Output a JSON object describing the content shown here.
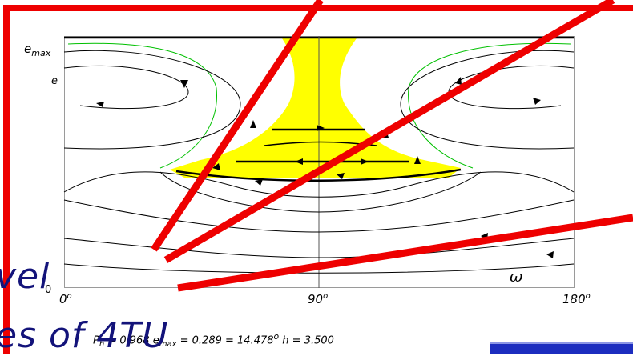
{
  "plot": {
    "y_label_top": "e",
    "y_label_top_sub": "max",
    "y_label": "e",
    "x_label": "ω",
    "origin_label": "0",
    "x_ticks": [
      {
        "value": "0",
        "unit": "o"
      },
      {
        "value": "90",
        "unit": "o"
      },
      {
        "value": "180",
        "unit": "o"
      }
    ]
  },
  "params": {
    "ph_label": "P",
    "ph_sub": "h",
    "ph_value": " = 0.968",
    "emax_label": "e",
    "emax_sub": "max",
    "emax_value": " = 0.289",
    "imax_value": " = 14.478",
    "imax_unit": "o",
    "h_text": " h = 3.500"
  },
  "overlay_text": {
    "line1": "vel",
    "line2": "es of 4TU"
  },
  "colors": {
    "highlight_fill": "#ffff00",
    "green_contour": "#00c000",
    "red_lines": "#ee0000",
    "trajectory": "#000000",
    "overlay_text": "#13137a",
    "bottom_bar": "#1c2dbf"
  }
}
